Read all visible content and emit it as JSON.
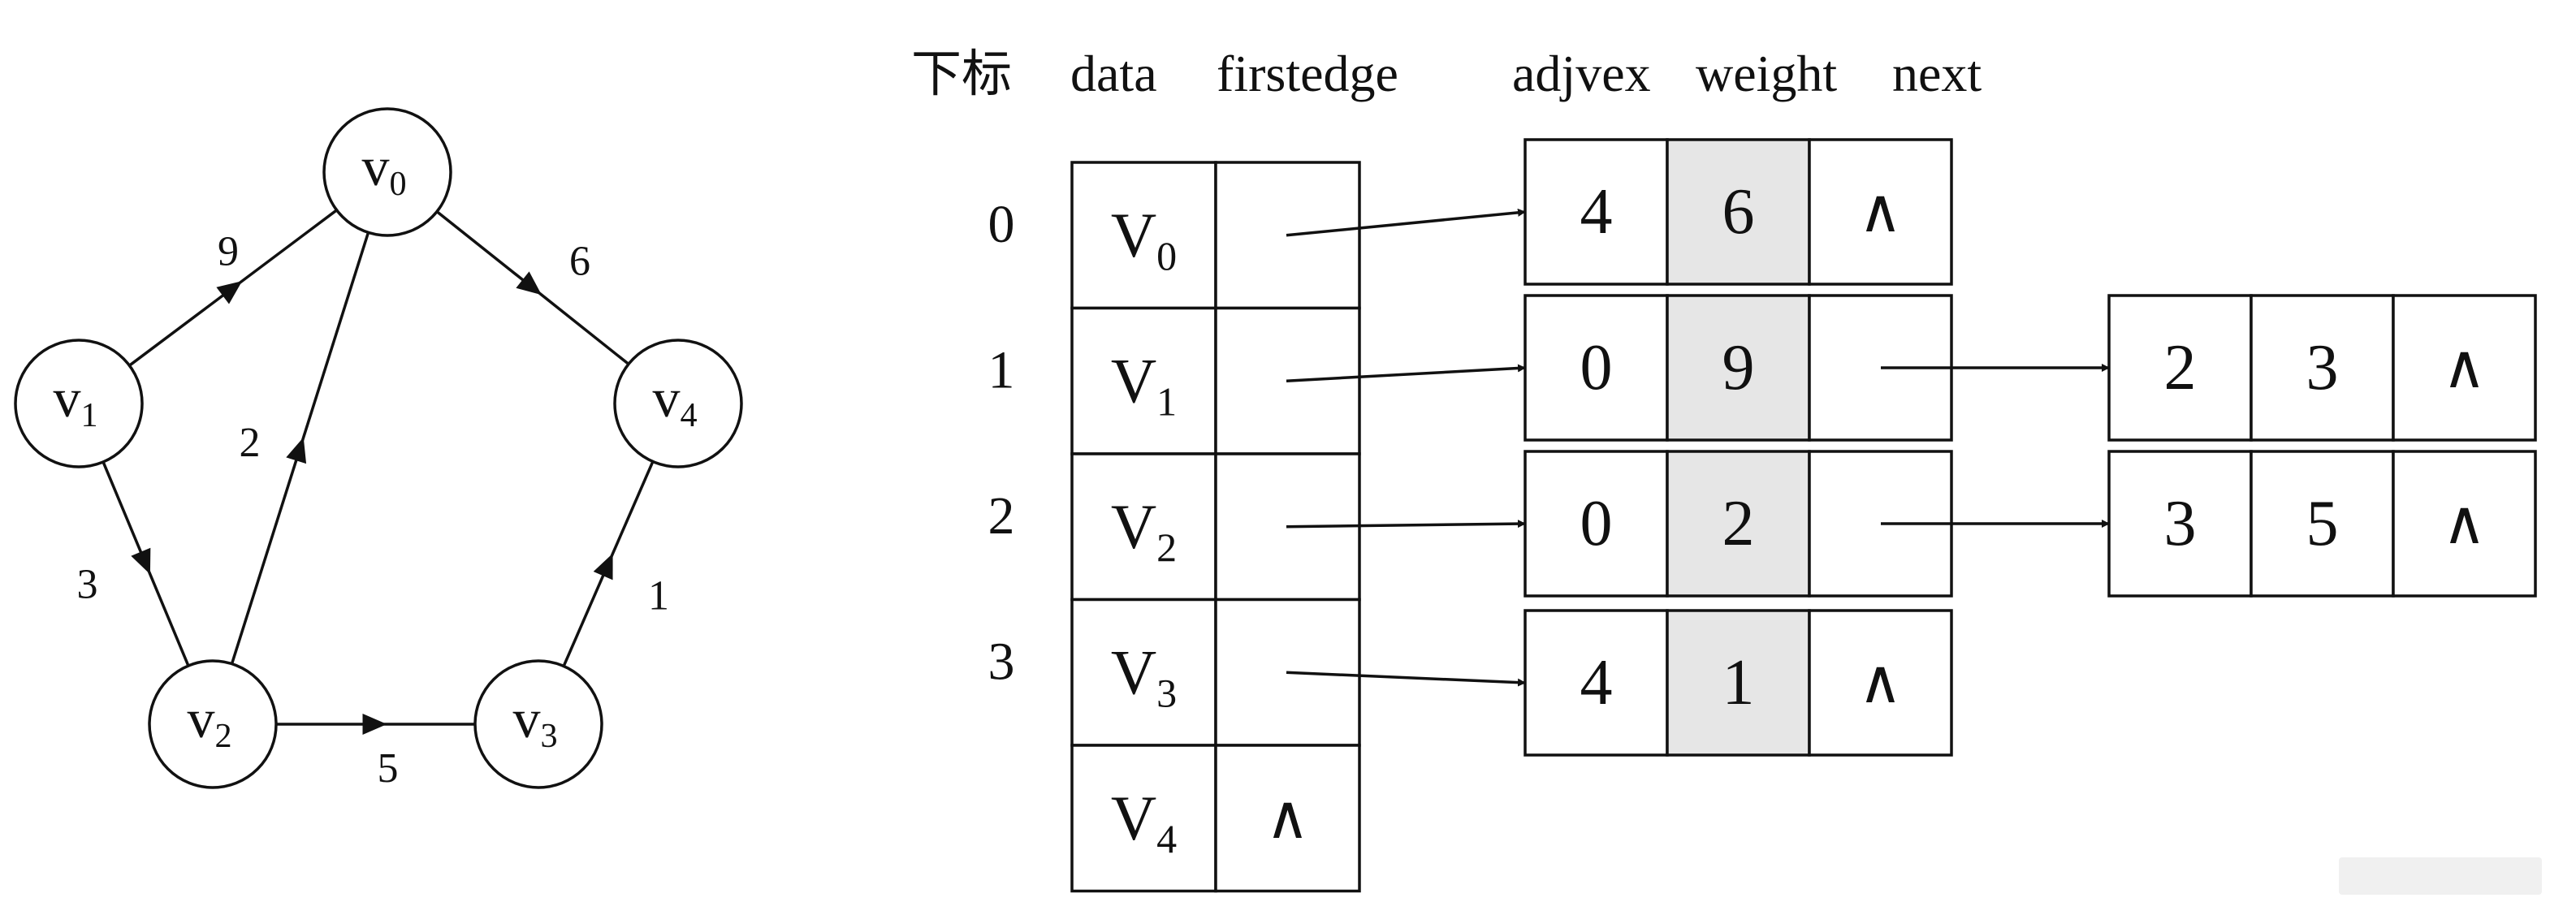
{
  "graph": {
    "nodes": [
      {
        "id": "v0",
        "letter": "v",
        "sub": "0"
      },
      {
        "id": "v1",
        "letter": "v",
        "sub": "1"
      },
      {
        "id": "v2",
        "letter": "v",
        "sub": "2"
      },
      {
        "id": "v3",
        "letter": "v",
        "sub": "3"
      },
      {
        "id": "v4",
        "letter": "v",
        "sub": "4"
      }
    ],
    "edges": [
      {
        "from": "v1",
        "to": "v0",
        "weight": "9"
      },
      {
        "from": "v0",
        "to": "v4",
        "weight": "6"
      },
      {
        "from": "v2",
        "to": "v0",
        "weight": "2"
      },
      {
        "from": "v1",
        "to": "v2",
        "weight": "3"
      },
      {
        "from": "v2",
        "to": "v3",
        "weight": "5"
      },
      {
        "from": "v3",
        "to": "v4",
        "weight": "1"
      }
    ]
  },
  "table": {
    "headers": {
      "index": "下标",
      "data": "data",
      "firstedge": "firstedge",
      "adjvex": "adjvex",
      "weight": "weight",
      "next": "next"
    },
    "null_symbol": "∧",
    "vertex_letter": "V",
    "rows": [
      {
        "index": "0",
        "sub": "0",
        "has_edge": true
      },
      {
        "index": "1",
        "sub": "1",
        "has_edge": true
      },
      {
        "index": "2",
        "sub": "2",
        "has_edge": true
      },
      {
        "index": "3",
        "sub": "3",
        "has_edge": true
      },
      {
        "index": "",
        "sub": "4",
        "has_edge": false
      }
    ],
    "edge_nodes": [
      {
        "row": 0,
        "adjvex": "4",
        "weight": "6",
        "next": null
      },
      {
        "row": 1,
        "adjvex": "0",
        "weight": "9",
        "next": {
          "adjvex": "2",
          "weight": "3"
        }
      },
      {
        "row": 2,
        "adjvex": "0",
        "weight": "2",
        "next": {
          "adjvex": "3",
          "weight": "5"
        }
      },
      {
        "row": 3,
        "adjvex": "4",
        "weight": "1",
        "next": null
      }
    ]
  }
}
